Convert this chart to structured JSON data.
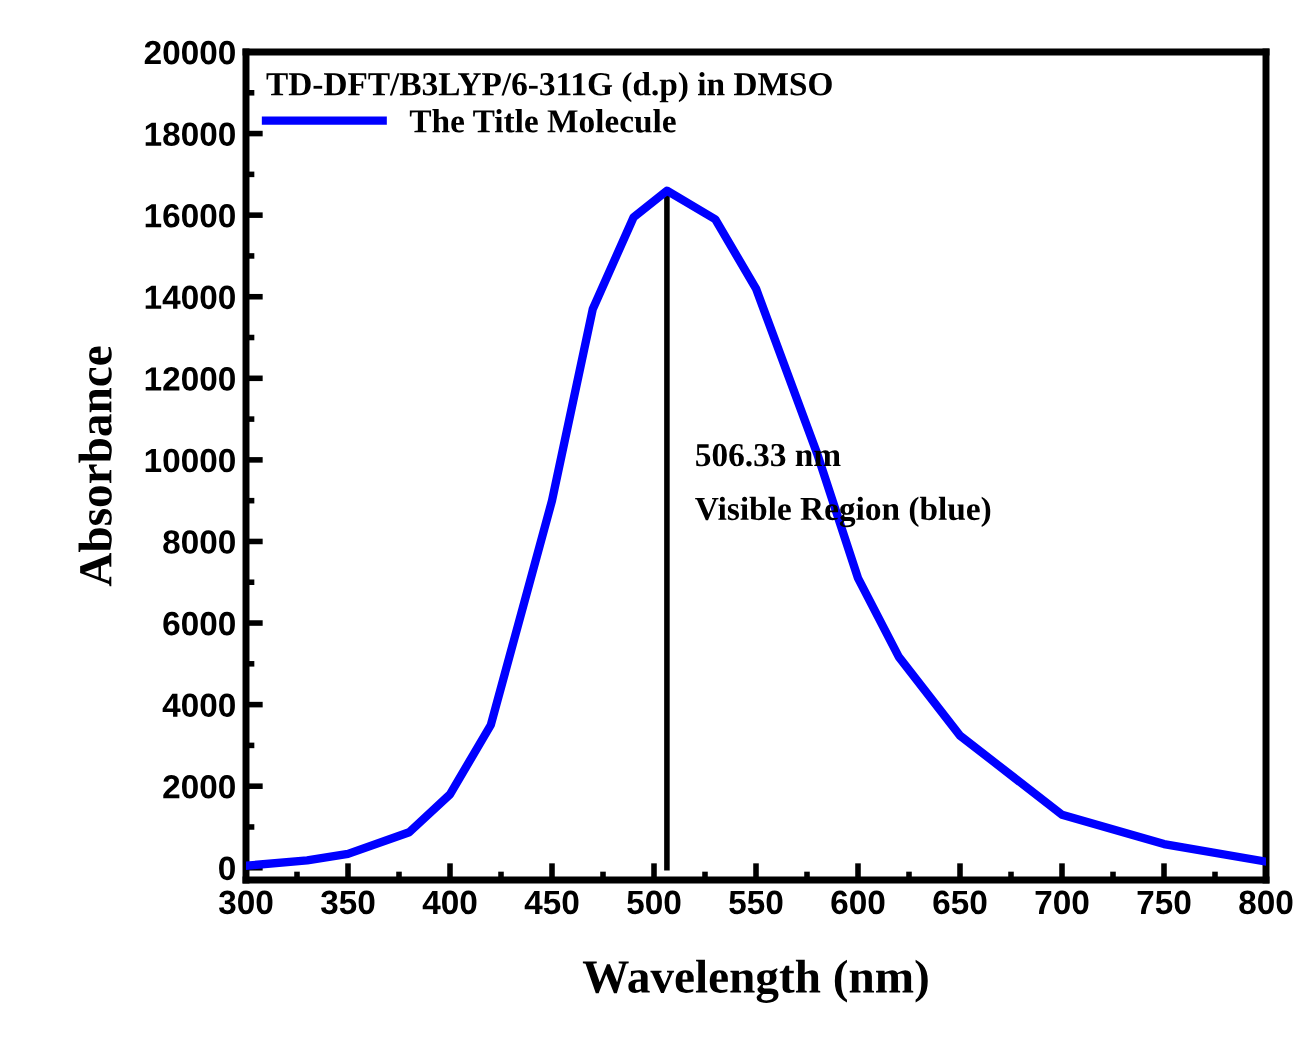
{
  "chart_data": {
    "type": "line",
    "xlabel": "Wavelength (nm)",
    "ylabel": "Absorbance",
    "legend_title": "TD-DFT/B3LYP/6-311G (d.p) in DMSO",
    "series": [
      {
        "name": "The Title Molecule",
        "color": "#0000ff",
        "x": [
          300,
          330,
          350,
          380,
          400,
          420,
          450,
          470,
          490,
          506.33,
          530,
          550,
          580,
          600,
          620,
          650,
          700,
          750,
          800
        ],
        "values": [
          50,
          180,
          340,
          870,
          1800,
          3500,
          9000,
          13700,
          15950,
          16600,
          15900,
          14200,
          10150,
          7100,
          5170,
          3240,
          1300,
          580,
          150
        ]
      },
      {
        "type": "line",
        "color": "#000000",
        "x": [
          506.33,
          506.33
        ],
        "values": [
          0,
          16600
        ]
      }
    ],
    "annotations": [
      "506.33 nm",
      "Visible Region (blue)"
    ],
    "xlim": [
      300,
      800
    ],
    "xticks": [
      300,
      350,
      400,
      450,
      500,
      550,
      600,
      650,
      700,
      750,
      800
    ],
    "ylim": [
      -300,
      20000
    ],
    "yticks": [
      0,
      2000,
      4000,
      6000,
      8000,
      10000,
      12000,
      14000,
      16000,
      18000,
      20000
    ],
    "grid": false,
    "legend": "top left",
    "marker": "none",
    "line_style": "solid"
  }
}
